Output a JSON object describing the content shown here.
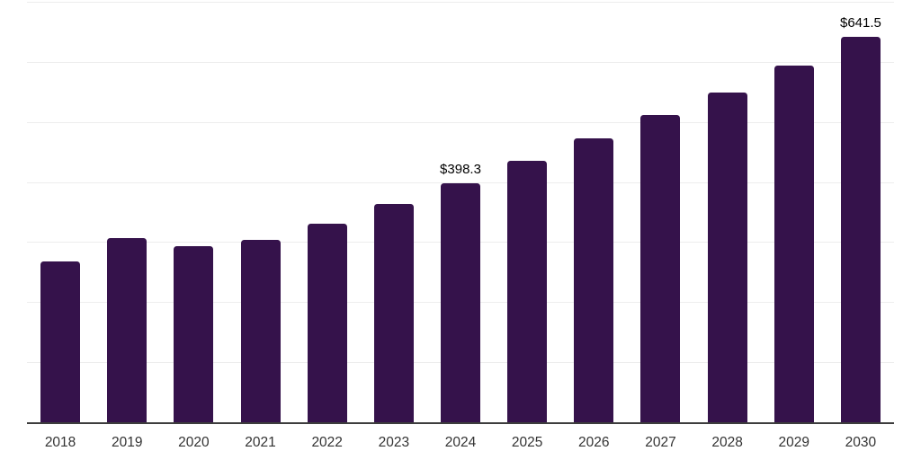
{
  "chart": {
    "bar_color": "#35124b",
    "grid_color": "#ededed",
    "axis_color": "#3d3d3d",
    "data_label_color": "#000000",
    "tick_label_color": "#333333"
  },
  "chart_data": {
    "type": "bar",
    "title": "",
    "xlabel": "",
    "ylabel": "",
    "categories": [
      "2018",
      "2019",
      "2020",
      "2021",
      "2022",
      "2023",
      "2024",
      "2025",
      "2026",
      "2027",
      "2028",
      "2029",
      "2030"
    ],
    "values": [
      268,
      306.5,
      293.5,
      304,
      331,
      364,
      398.3,
      436,
      473,
      511,
      549.5,
      594,
      641.5
    ],
    "data_labels": [
      {
        "category": "2024",
        "text": "$398.3"
      },
      {
        "category": "2030",
        "text": "$641.5"
      }
    ],
    "ylim": [
      0,
      700
    ],
    "grid_step": 100,
    "grid": true,
    "legend": false,
    "y_axis_labels_visible": false,
    "bar_color": "#35124b"
  }
}
